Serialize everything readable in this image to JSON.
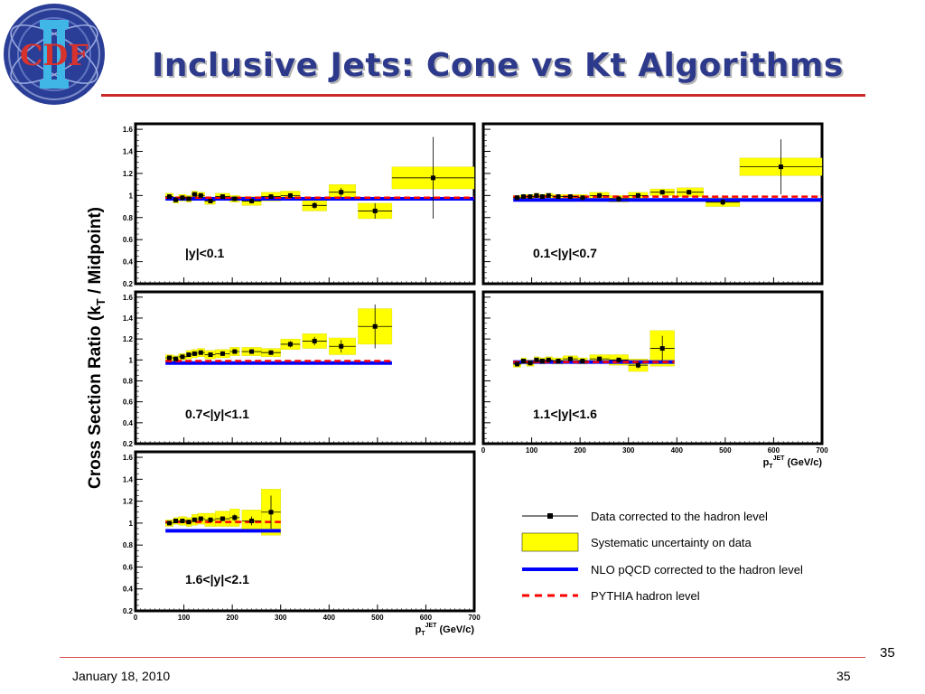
{
  "slide": {
    "title": "Inclusive Jets: Cone vs Kt Algorithms",
    "logo_text": "CDF",
    "page_number": "35",
    "footer_date": "January 18, 2010",
    "footer_page": "35",
    "accent_color": "#cc2a2a",
    "title_color": "#2d3a8c"
  },
  "chart_data": {
    "type": "scatter",
    "ylabel": "Cross Section Ratio (kT / Midpoint)",
    "xlabel": "pTJET (GeV/c)",
    "xlim": [
      0,
      700
    ],
    "ylim": [
      0.2,
      1.65
    ],
    "x_ticks": [
      0,
      100,
      200,
      300,
      400,
      500,
      600,
      700
    ],
    "y_ticks": [
      0.2,
      0.4,
      0.6,
      0.8,
      1.0,
      1.2,
      1.4,
      1.6
    ],
    "colors": {
      "data": "#000000",
      "systematic": "#ffff00",
      "nlo": "#0000ff",
      "pythia": "#ff0000"
    },
    "legend": {
      "data": "Data corrected to the hadron level",
      "systematic": "Systematic uncertainty on data",
      "nlo": "NLO pQCD corrected to the hadron level",
      "pythia": "PYTHIA hadron level"
    },
    "panels": [
      {
        "label": "|y|<0.1",
        "points": [
          {
            "x": 70,
            "xlo": 62,
            "xhi": 78,
            "y": 0.99,
            "err": 0.02,
            "sys": 0.03
          },
          {
            "x": 83,
            "xlo": 78,
            "xhi": 89,
            "y": 0.96,
            "err": 0.02,
            "sys": 0.03
          },
          {
            "x": 97,
            "xlo": 89,
            "xhi": 105,
            "y": 0.98,
            "err": 0.02,
            "sys": 0.03
          },
          {
            "x": 110,
            "xlo": 105,
            "xhi": 116,
            "y": 0.97,
            "err": 0.02,
            "sys": 0.03
          },
          {
            "x": 122,
            "xlo": 116,
            "xhi": 128,
            "y": 1.01,
            "err": 0.02,
            "sys": 0.03
          },
          {
            "x": 135,
            "xlo": 128,
            "xhi": 143,
            "y": 1.0,
            "err": 0.02,
            "sys": 0.03
          },
          {
            "x": 155,
            "xlo": 143,
            "xhi": 165,
            "y": 0.95,
            "err": 0.02,
            "sys": 0.03
          },
          {
            "x": 180,
            "xlo": 165,
            "xhi": 195,
            "y": 0.99,
            "err": 0.02,
            "sys": 0.03
          },
          {
            "x": 205,
            "xlo": 195,
            "xhi": 215,
            "y": 0.97,
            "err": 0.02,
            "sys": 0.03
          },
          {
            "x": 240,
            "xlo": 220,
            "xhi": 260,
            "y": 0.95,
            "err": 0.02,
            "sys": 0.04
          },
          {
            "x": 280,
            "xlo": 260,
            "xhi": 300,
            "y": 0.99,
            "err": 0.02,
            "sys": 0.04
          },
          {
            "x": 320,
            "xlo": 300,
            "xhi": 340,
            "y": 1.0,
            "err": 0.02,
            "sys": 0.04
          },
          {
            "x": 370,
            "xlo": 345,
            "xhi": 395,
            "y": 0.91,
            "err": 0.03,
            "sys": 0.05
          },
          {
            "x": 425,
            "xlo": 400,
            "xhi": 455,
            "y": 1.03,
            "err": 0.04,
            "sys": 0.07
          },
          {
            "x": 495,
            "xlo": 460,
            "xhi": 530,
            "y": 0.86,
            "err": 0.07,
            "sys": 0.07
          },
          {
            "x": 615,
            "xlo": 530,
            "xhi": 700,
            "y": 1.16,
            "err": 0.37,
            "sys": 0.1
          }
        ],
        "nlo": {
          "x0": 62,
          "x1": 700,
          "y": 0.97
        },
        "pythia": {
          "x0": 62,
          "x1": 700,
          "y": 0.98
        }
      },
      {
        "label": "0.1<|y|<0.7",
        "points": [
          {
            "x": 70,
            "xlo": 62,
            "xhi": 78,
            "y": 0.98,
            "err": 0.02,
            "sys": 0.02
          },
          {
            "x": 83,
            "xlo": 78,
            "xhi": 89,
            "y": 0.99,
            "err": 0.02,
            "sys": 0.02
          },
          {
            "x": 97,
            "xlo": 89,
            "xhi": 105,
            "y": 0.99,
            "err": 0.02,
            "sys": 0.02
          },
          {
            "x": 110,
            "xlo": 105,
            "xhi": 116,
            "y": 1.0,
            "err": 0.02,
            "sys": 0.02
          },
          {
            "x": 122,
            "xlo": 116,
            "xhi": 128,
            "y": 0.99,
            "err": 0.02,
            "sys": 0.02
          },
          {
            "x": 135,
            "xlo": 128,
            "xhi": 143,
            "y": 1.0,
            "err": 0.02,
            "sys": 0.02
          },
          {
            "x": 155,
            "xlo": 143,
            "xhi": 165,
            "y": 0.99,
            "err": 0.02,
            "sys": 0.02
          },
          {
            "x": 180,
            "xlo": 165,
            "xhi": 195,
            "y": 0.99,
            "err": 0.02,
            "sys": 0.02
          },
          {
            "x": 205,
            "xlo": 195,
            "xhi": 215,
            "y": 0.98,
            "err": 0.02,
            "sys": 0.03
          },
          {
            "x": 240,
            "xlo": 220,
            "xhi": 260,
            "y": 1.0,
            "err": 0.02,
            "sys": 0.03
          },
          {
            "x": 280,
            "xlo": 260,
            "xhi": 300,
            "y": 0.97,
            "err": 0.02,
            "sys": 0.03
          },
          {
            "x": 320,
            "xlo": 300,
            "xhi": 340,
            "y": 1.0,
            "err": 0.02,
            "sys": 0.03
          },
          {
            "x": 370,
            "xlo": 345,
            "xhi": 395,
            "y": 1.03,
            "err": 0.02,
            "sys": 0.03
          },
          {
            "x": 425,
            "xlo": 400,
            "xhi": 455,
            "y": 1.03,
            "err": 0.02,
            "sys": 0.04
          },
          {
            "x": 495,
            "xlo": 460,
            "xhi": 530,
            "y": 0.94,
            "err": 0.03,
            "sys": 0.04
          },
          {
            "x": 615,
            "xlo": 530,
            "xhi": 700,
            "y": 1.26,
            "err": 0.25,
            "sys": 0.08
          }
        ],
        "nlo": {
          "x0": 62,
          "x1": 700,
          "y": 0.96
        },
        "pythia": {
          "x0": 62,
          "x1": 700,
          "y": 0.99
        }
      },
      {
        "label": "0.7<|y|<1.1",
        "points": [
          {
            "x": 70,
            "xlo": 62,
            "xhi": 78,
            "y": 1.02,
            "err": 0.02,
            "sys": 0.03
          },
          {
            "x": 83,
            "xlo": 78,
            "xhi": 89,
            "y": 1.01,
            "err": 0.02,
            "sys": 0.03
          },
          {
            "x": 97,
            "xlo": 89,
            "xhi": 105,
            "y": 1.03,
            "err": 0.02,
            "sys": 0.03
          },
          {
            "x": 110,
            "xlo": 105,
            "xhi": 116,
            "y": 1.05,
            "err": 0.02,
            "sys": 0.04
          },
          {
            "x": 122,
            "xlo": 116,
            "xhi": 128,
            "y": 1.06,
            "err": 0.02,
            "sys": 0.04
          },
          {
            "x": 135,
            "xlo": 128,
            "xhi": 143,
            "y": 1.07,
            "err": 0.02,
            "sys": 0.04
          },
          {
            "x": 155,
            "xlo": 143,
            "xhi": 165,
            "y": 1.05,
            "err": 0.02,
            "sys": 0.04
          },
          {
            "x": 180,
            "xlo": 165,
            "xhi": 195,
            "y": 1.06,
            "err": 0.02,
            "sys": 0.04
          },
          {
            "x": 205,
            "xlo": 195,
            "xhi": 215,
            "y": 1.08,
            "err": 0.02,
            "sys": 0.04
          },
          {
            "x": 240,
            "xlo": 220,
            "xhi": 260,
            "y": 1.08,
            "err": 0.02,
            "sys": 0.04
          },
          {
            "x": 280,
            "xlo": 260,
            "xhi": 300,
            "y": 1.07,
            "err": 0.02,
            "sys": 0.04
          },
          {
            "x": 320,
            "xlo": 300,
            "xhi": 340,
            "y": 1.15,
            "err": 0.03,
            "sys": 0.05
          },
          {
            "x": 370,
            "xlo": 345,
            "xhi": 395,
            "y": 1.18,
            "err": 0.04,
            "sys": 0.07
          },
          {
            "x": 425,
            "xlo": 400,
            "xhi": 455,
            "y": 1.13,
            "err": 0.06,
            "sys": 0.08
          },
          {
            "x": 495,
            "xlo": 460,
            "xhi": 530,
            "y": 1.32,
            "err": 0.21,
            "sys": 0.17
          }
        ],
        "nlo": {
          "x0": 62,
          "x1": 530,
          "y": 0.97
        },
        "pythia": {
          "x0": 62,
          "x1": 530,
          "y": 0.99
        }
      },
      {
        "label": "1.1<|y|<1.6",
        "points": [
          {
            "x": 70,
            "xlo": 62,
            "xhi": 78,
            "y": 0.96,
            "err": 0.02,
            "sys": 0.03
          },
          {
            "x": 83,
            "xlo": 78,
            "xhi": 89,
            "y": 0.99,
            "err": 0.02,
            "sys": 0.03
          },
          {
            "x": 97,
            "xlo": 89,
            "xhi": 105,
            "y": 0.97,
            "err": 0.02,
            "sys": 0.03
          },
          {
            "x": 110,
            "xlo": 105,
            "xhi": 116,
            "y": 1.0,
            "err": 0.02,
            "sys": 0.03
          },
          {
            "x": 122,
            "xlo": 116,
            "xhi": 128,
            "y": 0.99,
            "err": 0.02,
            "sys": 0.03
          },
          {
            "x": 135,
            "xlo": 128,
            "xhi": 143,
            "y": 1.0,
            "err": 0.02,
            "sys": 0.03
          },
          {
            "x": 155,
            "xlo": 143,
            "xhi": 165,
            "y": 0.99,
            "err": 0.02,
            "sys": 0.03
          },
          {
            "x": 180,
            "xlo": 165,
            "xhi": 195,
            "y": 1.01,
            "err": 0.02,
            "sys": 0.03
          },
          {
            "x": 205,
            "xlo": 195,
            "xhi": 215,
            "y": 0.99,
            "err": 0.02,
            "sys": 0.03
          },
          {
            "x": 240,
            "xlo": 220,
            "xhi": 260,
            "y": 1.01,
            "err": 0.02,
            "sys": 0.04
          },
          {
            "x": 280,
            "xlo": 260,
            "xhi": 300,
            "y": 1.0,
            "err": 0.02,
            "sys": 0.05
          },
          {
            "x": 320,
            "xlo": 300,
            "xhi": 340,
            "y": 0.95,
            "err": 0.03,
            "sys": 0.06
          },
          {
            "x": 370,
            "xlo": 345,
            "xhi": 395,
            "y": 1.11,
            "err": 0.12,
            "sys": 0.17
          }
        ],
        "nlo": {
          "x0": 62,
          "x1": 395,
          "y": 0.98
        },
        "pythia": {
          "x0": 62,
          "x1": 395,
          "y": 0.98
        }
      },
      {
        "label": "1.6<|y|<2.1",
        "points": [
          {
            "x": 70,
            "xlo": 62,
            "xhi": 78,
            "y": 1.0,
            "err": 0.02,
            "sys": 0.03
          },
          {
            "x": 83,
            "xlo": 78,
            "xhi": 89,
            "y": 1.02,
            "err": 0.02,
            "sys": 0.03
          },
          {
            "x": 97,
            "xlo": 89,
            "xhi": 105,
            "y": 1.02,
            "err": 0.02,
            "sys": 0.04
          },
          {
            "x": 110,
            "xlo": 105,
            "xhi": 116,
            "y": 1.01,
            "err": 0.02,
            "sys": 0.04
          },
          {
            "x": 122,
            "xlo": 116,
            "xhi": 128,
            "y": 1.03,
            "err": 0.02,
            "sys": 0.05
          },
          {
            "x": 135,
            "xlo": 128,
            "xhi": 143,
            "y": 1.04,
            "err": 0.02,
            "sys": 0.05
          },
          {
            "x": 155,
            "xlo": 143,
            "xhi": 165,
            "y": 1.03,
            "err": 0.02,
            "sys": 0.06
          },
          {
            "x": 180,
            "xlo": 165,
            "xhi": 195,
            "y": 1.04,
            "err": 0.02,
            "sys": 0.07
          },
          {
            "x": 205,
            "xlo": 195,
            "xhi": 215,
            "y": 1.05,
            "err": 0.03,
            "sys": 0.08
          },
          {
            "x": 240,
            "xlo": 220,
            "xhi": 260,
            "y": 1.02,
            "err": 0.04,
            "sys": 0.1
          },
          {
            "x": 280,
            "xlo": 260,
            "xhi": 300,
            "y": 1.1,
            "err": 0.15,
            "sys": 0.21
          }
        ],
        "nlo": {
          "x0": 62,
          "x1": 300,
          "y": 0.93
        },
        "pythia": {
          "x0": 62,
          "x1": 300,
          "y": 1.01
        }
      }
    ]
  }
}
